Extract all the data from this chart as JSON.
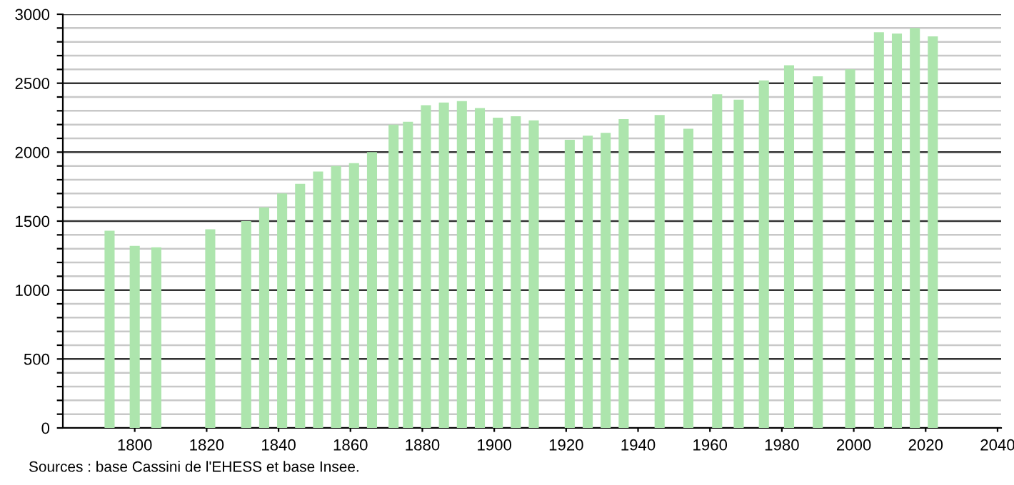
{
  "chart_data": {
    "type": "bar",
    "x": [
      1793,
      1800,
      1806,
      1821,
      1831,
      1836,
      1841,
      1846,
      1851,
      1856,
      1861,
      1866,
      1872,
      1876,
      1881,
      1886,
      1891,
      1896,
      1901,
      1906,
      1911,
      1921,
      1926,
      1931,
      1936,
      1946,
      1954,
      1962,
      1968,
      1975,
      1982,
      1990,
      1999,
      2007,
      2012,
      2017,
      2022
    ],
    "values": [
      1430,
      1320,
      1310,
      1440,
      1500,
      1600,
      1700,
      1770,
      1860,
      1900,
      1920,
      2000,
      2200,
      2220,
      2340,
      2360,
      2370,
      2320,
      2250,
      2260,
      2230,
      2090,
      2120,
      2140,
      2240,
      2270,
      2170,
      2420,
      2380,
      2520,
      2630,
      2550,
      2600,
      2870,
      2860,
      2900,
      2840
    ],
    "color": "#ade5ad",
    "xlim": [
      1780,
      2041
    ],
    "xticks": [
      1800,
      1820,
      1840,
      1860,
      1880,
      1900,
      1920,
      1940,
      1960,
      1980,
      2000,
      2020,
      2040
    ],
    "ylim": [
      0,
      3000
    ],
    "yticks": [
      0,
      {
        "value": 100,
        "label": null
      },
      {
        "value": 200,
        "label": null
      },
      {
        "value": 300,
        "label": null
      },
      {
        "value": 400,
        "label": null
      },
      500,
      {
        "value": 600,
        "label": null
      },
      {
        "value": 700,
        "label": null
      },
      {
        "value": 800,
        "label": null
      },
      {
        "value": 900,
        "label": null
      },
      1000,
      {
        "value": 1100,
        "label": null
      },
      {
        "value": 1200,
        "label": null
      },
      {
        "value": 1300,
        "label": null
      },
      {
        "value": 1400,
        "label": null
      },
      1500,
      {
        "value": 1600,
        "label": null
      },
      {
        "value": 1700,
        "label": null
      },
      {
        "value": 1800,
        "label": null
      },
      {
        "value": 1900,
        "label": null
      },
      2000,
      {
        "value": 2100,
        "label": null
      },
      {
        "value": 2200,
        "label": null
      },
      {
        "value": 2300,
        "label": null
      },
      {
        "value": 2400,
        "label": null
      },
      2500,
      {
        "value": 2600,
        "label": null
      },
      {
        "value": 2700,
        "label": null
      },
      {
        "value": 2800,
        "label": null
      },
      {
        "value": 2900,
        "label": null
      },
      3000
    ],
    "grid": "y",
    "annotations": [
      "Sources : base Cassini de l'EHESS et base Insee."
    ]
  }
}
